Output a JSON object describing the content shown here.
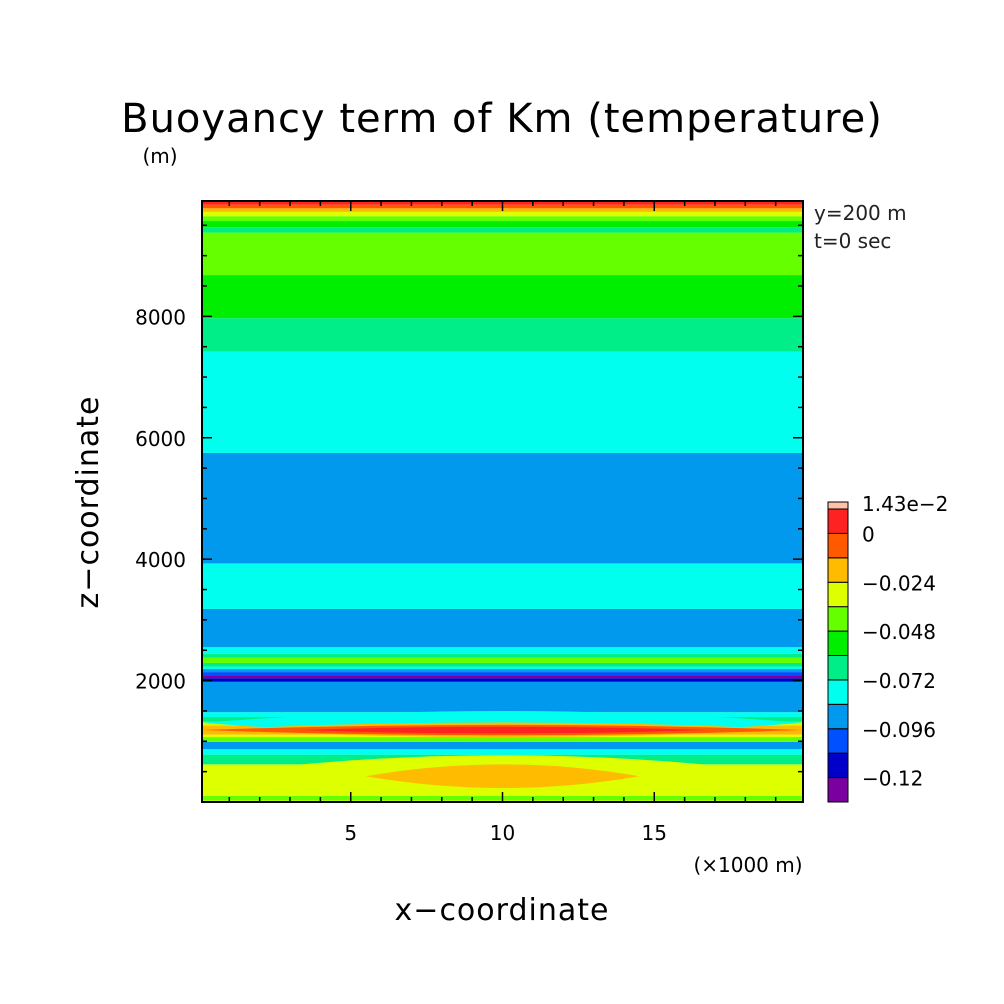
{
  "chart_data": {
    "type": "heatmap",
    "title": "Buoyancy term of Km (temperature)",
    "xlabel": "x−coordinate",
    "ylabel": "z−coordinate",
    "x_unit": "(×1000 m)",
    "y_unit": "(m)",
    "xlim": [
      0.1,
      19.9
    ],
    "ylim": [
      0,
      9900
    ],
    "x_ticks": [
      5,
      10,
      15
    ],
    "y_ticks": [
      2000,
      4000,
      6000,
      8000
    ],
    "annotations": [
      "y=200 m",
      "t=0 sec"
    ],
    "colorbar": {
      "max_label": "1.43e−2",
      "tick_labels": [
        "0",
        "−0.024",
        "−0.048",
        "−0.072",
        "−0.096",
        "−0.12"
      ],
      "levels": [
        {
          "lo": -0.132,
          "hi": -0.12,
          "color": "#7a00a0"
        },
        {
          "lo": -0.12,
          "hi": -0.108,
          "color": "#0000c8"
        },
        {
          "lo": -0.108,
          "hi": -0.096,
          "color": "#0050ff"
        },
        {
          "lo": -0.096,
          "hi": -0.084,
          "color": "#0099ee"
        },
        {
          "lo": -0.084,
          "hi": -0.072,
          "color": "#00ffee"
        },
        {
          "lo": -0.072,
          "hi": -0.06,
          "color": "#00ee88"
        },
        {
          "lo": -0.06,
          "hi": -0.048,
          "color": "#00ee00"
        },
        {
          "lo": -0.048,
          "hi": -0.036,
          "color": "#66ff00"
        },
        {
          "lo": -0.036,
          "hi": -0.024,
          "color": "#ddff00"
        },
        {
          "lo": -0.024,
          "hi": -0.012,
          "color": "#ffbb00"
        },
        {
          "lo": -0.012,
          "hi": 0.0,
          "color": "#ff5a00"
        },
        {
          "lo": 0.0,
          "hi": 0.012,
          "color": "#ff2222"
        },
        {
          "lo": 0.012,
          "hi": 0.0143,
          "color": "#ffc0a8"
        }
      ]
    },
    "layers": [
      {
        "z0": 0,
        "z1": 25,
        "color": "#ddff00"
      },
      {
        "z0": 25,
        "z1": 100,
        "color": "#66ff00"
      },
      {
        "z0": 100,
        "z1": 620,
        "color": "#ddff00"
      },
      {
        "z0": 620,
        "z1": 780,
        "color": "#00ee88"
      },
      {
        "z0": 780,
        "z1": 870,
        "color": "#00ffee"
      },
      {
        "z0": 870,
        "z1": 990,
        "color": "#0099ee"
      },
      {
        "z0": 990,
        "z1": 1070,
        "color": "#66ff00"
      },
      {
        "z0": 1070,
        "z1": 1110,
        "color": "#ddff00"
      },
      {
        "z0": 1110,
        "z1": 1260,
        "color": "#ffbb00"
      },
      {
        "z0": 1260,
        "z1": 1320,
        "color": "#ddff00"
      },
      {
        "z0": 1320,
        "z1": 1400,
        "color": "#00ee88"
      },
      {
        "z0": 1400,
        "z1": 1480,
        "color": "#00ffee"
      },
      {
        "z0": 1480,
        "z1": 1980,
        "color": "#0099ee"
      },
      {
        "z0": 1980,
        "z1": 2040,
        "color": "#0000c8"
      },
      {
        "z0": 2040,
        "z1": 2090,
        "color": "#7a00a0"
      },
      {
        "z0": 2090,
        "z1": 2140,
        "color": "#0050ff"
      },
      {
        "z0": 2140,
        "z1": 2190,
        "color": "#0099ee"
      },
      {
        "z0": 2190,
        "z1": 2230,
        "color": "#00ffee"
      },
      {
        "z0": 2230,
        "z1": 2290,
        "color": "#00ee88"
      },
      {
        "z0": 2290,
        "z1": 2380,
        "color": "#66ff00"
      },
      {
        "z0": 2380,
        "z1": 2440,
        "color": "#00ee88"
      },
      {
        "z0": 2440,
        "z1": 2550,
        "color": "#00ffee"
      },
      {
        "z0": 2550,
        "z1": 3180,
        "color": "#0099ee"
      },
      {
        "z0": 3180,
        "z1": 3930,
        "color": "#00ffee"
      },
      {
        "z0": 3930,
        "z1": 5750,
        "color": "#0099ee"
      },
      {
        "z0": 5750,
        "z1": 7420,
        "color": "#00ffee"
      },
      {
        "z0": 7420,
        "z1": 7970,
        "color": "#00ee88"
      },
      {
        "z0": 7970,
        "z1": 8680,
        "color": "#00ee00"
      },
      {
        "z0": 8680,
        "z1": 9380,
        "color": "#66ff00"
      },
      {
        "z0": 9380,
        "z1": 9470,
        "color": "#00ee88"
      },
      {
        "z0": 9470,
        "z1": 9570,
        "color": "#00ee00"
      },
      {
        "z0": 9570,
        "z1": 9650,
        "color": "#66ff00"
      },
      {
        "z0": 9650,
        "z1": 9720,
        "color": "#ddff00"
      },
      {
        "z0": 9720,
        "z1": 9780,
        "color": "#ffbb00"
      },
      {
        "z0": 9780,
        "z1": 9840,
        "color": "#ff5a00"
      },
      {
        "z0": 9840,
        "z1": 9900,
        "color": "#ff2222"
      }
    ],
    "lenses": [
      {
        "x_half": [
          0.1,
          19.9
        ],
        "z": [
          1110,
          1500
        ],
        "color": "#00ffee"
      },
      {
        "x_half": [
          0.1,
          19.9
        ],
        "z": [
          1070,
          1310
        ],
        "color": "#ffbb00"
      },
      {
        "x_half": [
          0.1,
          19.9
        ],
        "z": [
          1100,
          1270
        ],
        "color": "#ff5a00"
      },
      {
        "x_half": [
          3.3,
          16.7
        ],
        "z": [
          1130,
          1240
        ],
        "color": "#ff2222"
      },
      {
        "x_half": [
          0.1,
          19.9
        ],
        "z": [
          100,
          770
        ],
        "color": "#ddff00"
      },
      {
        "x_half": [
          5.5,
          14.5
        ],
        "z": [
          230,
          620
        ],
        "color": "#ffbb00"
      }
    ]
  }
}
